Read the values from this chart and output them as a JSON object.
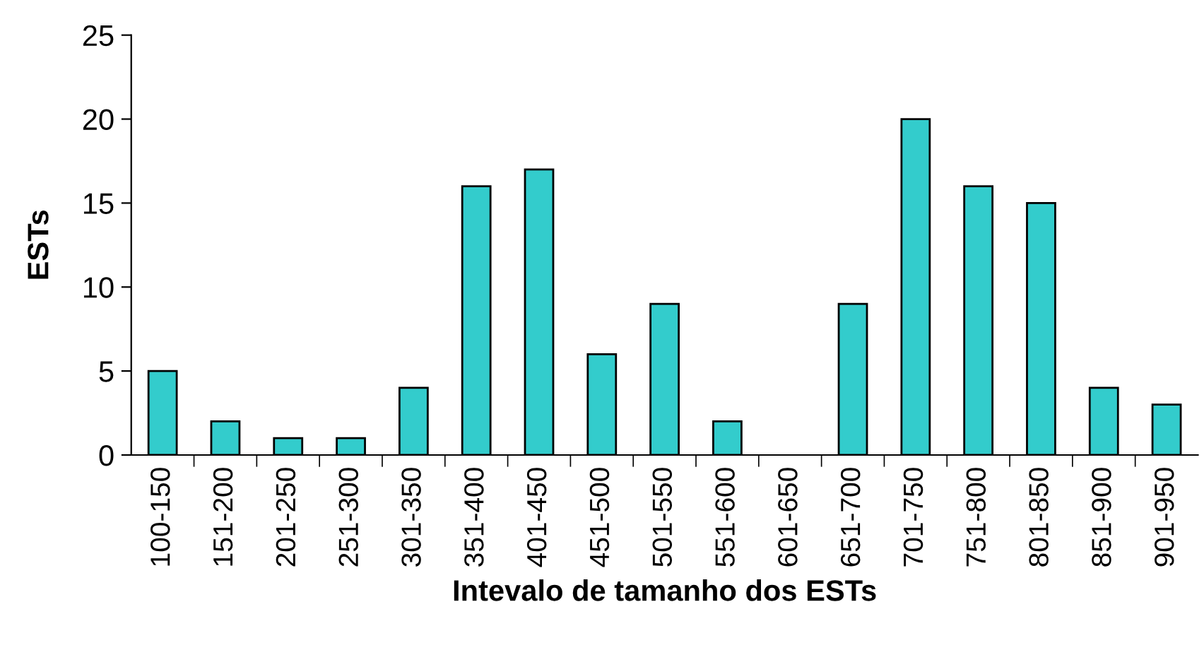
{
  "chart_data": {
    "type": "bar",
    "xlabel": "Intevalo de tamanho dos ESTs",
    "ylabel": "ESTs",
    "categories": [
      "100-150",
      "151-200",
      "201-250",
      "251-300",
      "301-350",
      "351-400",
      "401-450",
      "451-500",
      "501-550",
      "551-600",
      "601-650",
      "651-700",
      "701-750",
      "751-800",
      "801-850",
      "851-900",
      "901-950"
    ],
    "values": [
      5,
      2,
      1,
      1,
      4,
      16,
      17,
      6,
      9,
      2,
      0,
      9,
      20,
      16,
      15,
      4,
      3
    ],
    "color": "#33cccc",
    "ylim": [
      0,
      25
    ],
    "yticks": [
      0,
      5,
      10,
      15,
      20,
      25
    ]
  }
}
